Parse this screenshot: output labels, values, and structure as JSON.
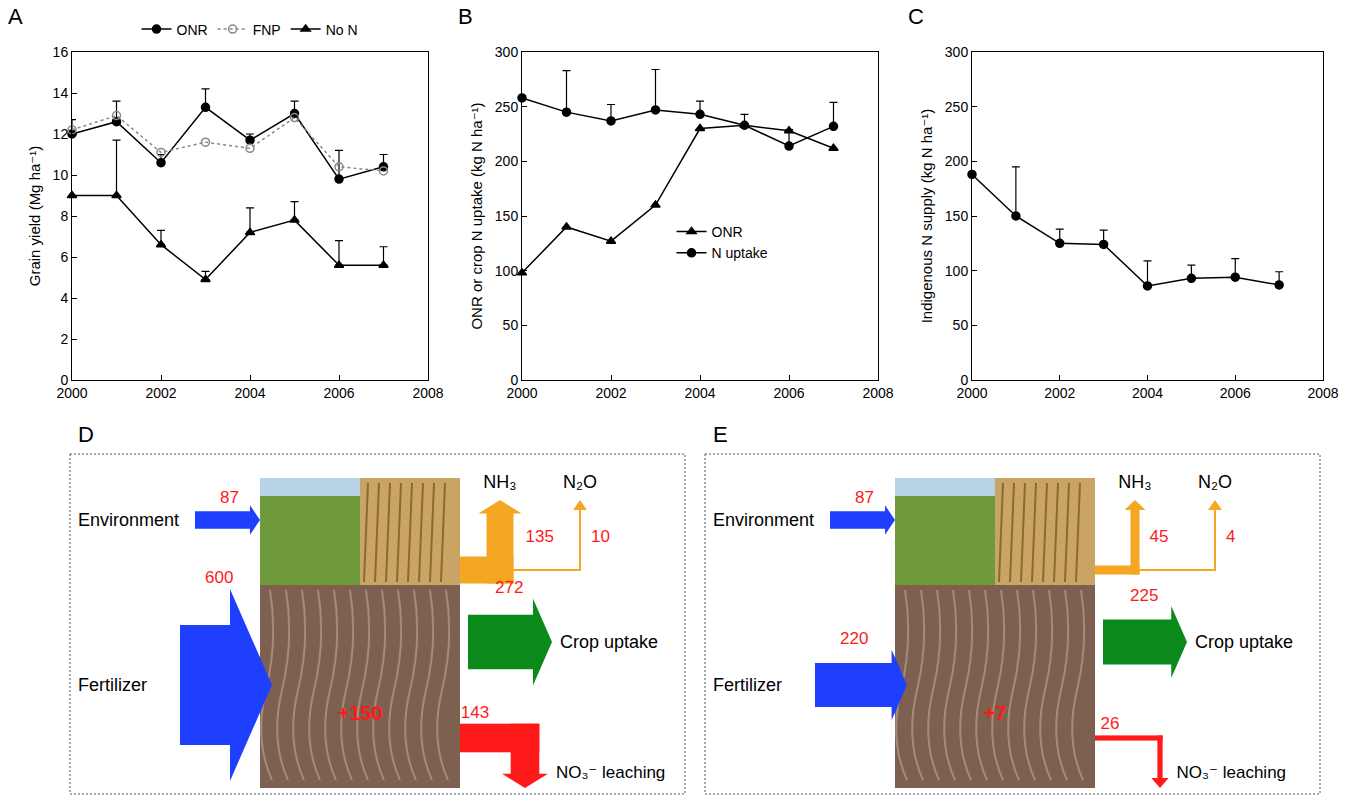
{
  "chart_data": [
    {
      "panel": "A",
      "type": "line",
      "ylabel": "Grain yield (Mg ha⁻¹)",
      "x": [
        2000,
        2001,
        2002,
        2003,
        2004,
        2005,
        2006,
        2007
      ],
      "series": [
        {
          "name": "ONR",
          "color": "#000000",
          "marker": "circle",
          "line_style": "solid",
          "values": [
            12.0,
            12.6,
            10.6,
            13.3,
            11.7,
            13.0,
            9.8,
            10.4
          ],
          "errors": [
            0.7,
            1.0,
            0.4,
            0.9,
            0.3,
            0.6,
            1.4,
            0.6
          ]
        },
        {
          "name": "FNP",
          "color": "#888888",
          "marker": "circle-open",
          "line_style": "dot",
          "values": [
            12.2,
            12.9,
            11.1,
            11.6,
            11.3,
            12.8,
            10.4,
            10.2
          ]
        },
        {
          "name": "No N",
          "color": "#000000",
          "marker": "triangle-up",
          "line_style": "solid",
          "values": [
            9.0,
            9.0,
            6.6,
            4.9,
            7.2,
            7.8,
            5.6,
            5.6
          ],
          "errors": [
            0,
            2.7,
            0.7,
            0.4,
            1.2,
            0.9,
            1.2,
            0.9
          ]
        }
      ],
      "xlim": [
        2000,
        2008
      ],
      "xticks": [
        2000,
        2002,
        2004,
        2006,
        2008
      ],
      "ylim": [
        0,
        16
      ],
      "yticks": [
        0,
        2,
        4,
        6,
        8,
        10,
        12,
        14,
        16
      ],
      "grid": false,
      "legend": "top"
    },
    {
      "panel": "B",
      "type": "line",
      "ylabel": "ONR or crop N uptake (kg N ha⁻¹)",
      "x": [
        2000,
        2001,
        2002,
        2003,
        2004,
        2005,
        2006,
        2007
      ],
      "series": [
        {
          "name": "ONR",
          "color": "#000000",
          "marker": "triangle-up",
          "line_style": "solid",
          "values": [
            98,
            140,
            127,
            160,
            230,
            233,
            228,
            212
          ]
        },
        {
          "name": "N uptake",
          "color": "#000000",
          "marker": "circle",
          "line_style": "solid",
          "values": [
            258,
            245,
            237,
            247,
            243,
            233,
            214,
            232
          ],
          "errors": [
            0,
            38,
            15,
            37,
            12,
            10,
            15,
            22
          ]
        }
      ],
      "xlim": [
        2000,
        2008
      ],
      "xticks": [
        2000,
        2002,
        2004,
        2006,
        2008
      ],
      "ylim": [
        0,
        300
      ],
      "yticks": [
        0,
        50,
        100,
        150,
        200,
        250,
        300
      ],
      "grid": false,
      "legend": "center"
    },
    {
      "panel": "C",
      "type": "line",
      "ylabel": "Indigenous N supply (kg N ha⁻¹)",
      "x": [
        2000,
        2001,
        2002,
        2003,
        2004,
        2005,
        2006,
        2007
      ],
      "series": [
        {
          "name": "Indigenous N supply",
          "color": "#000000",
          "marker": "circle",
          "line_style": "solid",
          "values": [
            188,
            150,
            125,
            124,
            86,
            93,
            94,
            87
          ],
          "errors": [
            0,
            45,
            13,
            13,
            23,
            12,
            17,
            12
          ]
        }
      ],
      "xlim": [
        2000,
        2008
      ],
      "xticks": [
        2000,
        2002,
        2004,
        2006,
        2008
      ],
      "ylim": [
        0,
        300
      ],
      "yticks": [
        0,
        50,
        100,
        150,
        200,
        250,
        300
      ],
      "grid": false
    }
  ],
  "diagrams": [
    {
      "panel": "D",
      "inputs": [
        {
          "label": "Environment",
          "value": 87
        },
        {
          "label": "Fertilizer",
          "value": 600
        }
      ],
      "gases": [
        {
          "label": "NH₃",
          "value": 135
        },
        {
          "label": "N₂O",
          "value": 10
        }
      ],
      "uptake": {
        "label": "Crop uptake",
        "value": 272
      },
      "leaching": {
        "label": "NO₃⁻ leaching",
        "value": 143
      },
      "soil": {
        "value": 150,
        "label": "+150"
      }
    },
    {
      "panel": "E",
      "inputs": [
        {
          "label": "Environment",
          "value": 87
        },
        {
          "label": "Fertilizer",
          "value": 220
        }
      ],
      "gases": [
        {
          "label": "NH₃",
          "value": 45
        },
        {
          "label": "N₂O",
          "value": 4
        }
      ],
      "uptake": {
        "label": "Crop uptake",
        "value": 225
      },
      "leaching": {
        "label": "NO₃⁻ leaching",
        "value": 26
      },
      "soil": {
        "value": 7,
        "label": "+7"
      }
    }
  ]
}
